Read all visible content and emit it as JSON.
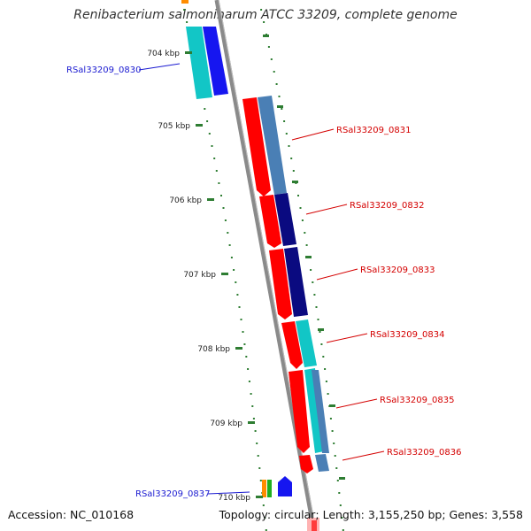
{
  "title": "Renibacterium salmoninarum ATCC 33209, complete genome",
  "footer": {
    "accession": "Accession: NC_010168",
    "topology": "Topology: circular; Length: 3,155,250 bp; Genes: 3,558"
  },
  "colors": {
    "backbone": "#8a8a8a",
    "tick": "#2e7d32",
    "forward_label": "#1a1ad1",
    "reverse_label": "#d40000",
    "cds": "#ff0000"
  },
  "scale_labels": [
    "704 kbp",
    "705 kbp",
    "706 kbp",
    "707 kbp",
    "708 kbp",
    "709 kbp",
    "710 kbp"
  ],
  "genes": [
    {
      "label": "RSal33209_0830",
      "strand": "forward",
      "color": "#1a1ad1"
    },
    {
      "label": "RSal33209_0831",
      "strand": "reverse",
      "color": "#d40000"
    },
    {
      "label": "RSal33209_0832",
      "strand": "reverse",
      "color": "#d40000"
    },
    {
      "label": "RSal33209_0833",
      "strand": "reverse",
      "color": "#d40000"
    },
    {
      "label": "RSal33209_0834",
      "strand": "reverse",
      "color": "#d40000"
    },
    {
      "label": "RSal33209_0835",
      "strand": "reverse",
      "color": "#d40000"
    },
    {
      "label": "RSal33209_0836",
      "strand": "reverse",
      "color": "#d40000"
    },
    {
      "label": "RSal33209_0837",
      "strand": "forward",
      "color": "#1a1ad1"
    }
  ]
}
